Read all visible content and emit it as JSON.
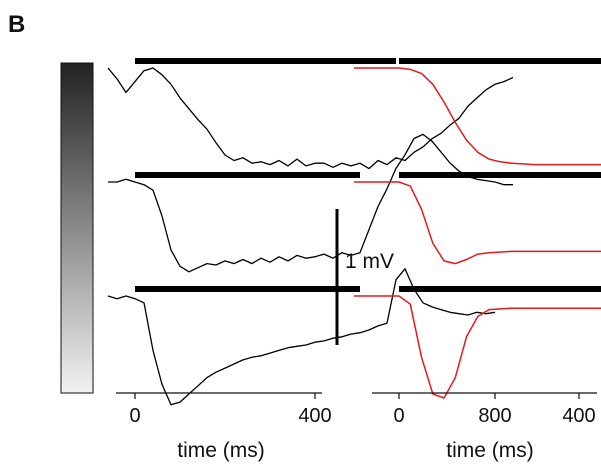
{
  "chart_data": {
    "type": "line",
    "panel_label": "B",
    "grayscale_bar": {
      "top_color": "#222222",
      "bottom_color": "#f2f2f2"
    },
    "scale_bar_label": "1 mV",
    "scale_bar_value_mV": 1,
    "stimulus_color": "#000000",
    "panels": [
      {
        "name": "recorded",
        "trace_color": "#000000",
        "xlabel": "time (ms)",
        "xlim": [
          -80,
          900
        ],
        "xticks": [
          0,
          400,
          800
        ],
        "xtick_labels": [
          "0",
          "400",
          "800"
        ],
        "series": [
          {
            "stimulus": [
              0,
              580
            ],
            "x": [
              -60,
              -40,
              -20,
              0,
              20,
              40,
              60,
              80,
              100,
              120,
              140,
              160,
              180,
              200,
              220,
              240,
              260,
              280,
              300,
              320,
              340,
              360,
              380,
              400,
              420,
              440,
              460,
              480,
              500,
              520,
              540,
              560,
              580,
              600,
              620,
              640,
              660,
              680,
              700,
              720,
              740,
              760,
              780,
              800,
              820,
              840
            ],
            "y": [
              0.0,
              -0.08,
              -0.18,
              -0.1,
              -0.02,
              0.0,
              -0.05,
              -0.12,
              -0.22,
              -0.3,
              -0.38,
              -0.45,
              -0.55,
              -0.64,
              -0.68,
              -0.66,
              -0.7,
              -0.69,
              -0.71,
              -0.68,
              -0.72,
              -0.67,
              -0.72,
              -0.7,
              -0.7,
              -0.73,
              -0.7,
              -0.72,
              -0.7,
              -0.74,
              -0.68,
              -0.71,
              -0.66,
              -0.68,
              -0.62,
              -0.58,
              -0.52,
              -0.48,
              -0.42,
              -0.37,
              -0.28,
              -0.22,
              -0.16,
              -0.12,
              -0.1,
              -0.07
            ]
          },
          {
            "stimulus": [
              0,
              500
            ],
            "x": [
              -60,
              -40,
              -20,
              0,
              20,
              40,
              60,
              80,
              100,
              120,
              140,
              160,
              180,
              200,
              220,
              240,
              260,
              280,
              300,
              320,
              340,
              360,
              380,
              400,
              420,
              440,
              460,
              480,
              500,
              520,
              540,
              560,
              580,
              600,
              620,
              640,
              660,
              680,
              700,
              720,
              740,
              760,
              780,
              800,
              820,
              840
            ],
            "y": [
              0.0,
              0.0,
              0.02,
              0.0,
              -0.02,
              -0.06,
              -0.25,
              -0.5,
              -0.62,
              -0.66,
              -0.63,
              -0.6,
              -0.61,
              -0.58,
              -0.6,
              -0.57,
              -0.6,
              -0.56,
              -0.59,
              -0.55,
              -0.58,
              -0.54,
              -0.56,
              -0.55,
              -0.53,
              -0.56,
              -0.52,
              -0.54,
              -0.52,
              -0.35,
              -0.18,
              -0.05,
              0.1,
              0.2,
              0.32,
              0.35,
              0.3,
              0.22,
              0.14,
              0.08,
              0.04,
              0.02,
              0.01,
              0.0,
              -0.02,
              -0.02
            ]
          },
          {
            "stimulus": [
              0,
              500
            ],
            "x": [
              -60,
              -40,
              -20,
              0,
              20,
              40,
              60,
              80,
              100,
              120,
              140,
              160,
              180,
              200,
              220,
              240,
              260,
              280,
              300,
              320,
              340,
              360,
              380,
              400,
              420,
              440,
              460,
              480,
              500,
              520,
              540,
              560,
              580,
              600,
              620,
              640,
              660,
              680,
              700,
              720,
              740,
              760,
              780,
              800
            ],
            "y": [
              0.0,
              -0.02,
              0.0,
              -0.02,
              -0.05,
              -0.4,
              -0.65,
              -0.8,
              -0.78,
              -0.72,
              -0.66,
              -0.6,
              -0.56,
              -0.53,
              -0.5,
              -0.47,
              -0.45,
              -0.44,
              -0.42,
              -0.4,
              -0.38,
              -0.37,
              -0.36,
              -0.34,
              -0.33,
              -0.31,
              -0.3,
              -0.28,
              -0.27,
              -0.25,
              -0.22,
              -0.2,
              0.12,
              0.2,
              0.05,
              -0.05,
              -0.08,
              -0.1,
              -0.12,
              -0.13,
              -0.14,
              -0.12,
              -0.13,
              -0.12
            ]
          }
        ]
      },
      {
        "name": "model",
        "trace_color": "#e31a1c",
        "xlabel": "time (ms)",
        "xlim": [
          -120,
          900
        ],
        "xticks": [
          0,
          400,
          800
        ],
        "xtick_labels": [
          "0",
          "400",
          "800"
        ],
        "series": [
          {
            "stimulus": [
              0,
              580
            ],
            "x": [
              -100,
              -50,
              0,
              25,
              50,
              75,
              100,
              125,
              150,
              175,
              200,
              225,
              250,
              275,
              300,
              350,
              400,
              450,
              500,
              550,
              575,
              600,
              625,
              650,
              675,
              700,
              725,
              750,
              775,
              800,
              825,
              850,
              875,
              900
            ],
            "y": [
              0.0,
              0.0,
              0.0,
              -0.01,
              -0.04,
              -0.12,
              -0.25,
              -0.4,
              -0.53,
              -0.62,
              -0.67,
              -0.69,
              -0.7,
              -0.705,
              -0.71,
              -0.71,
              -0.71,
              -0.71,
              -0.71,
              -0.71,
              -0.7,
              -0.66,
              -0.55,
              -0.42,
              -0.3,
              -0.2,
              -0.13,
              -0.08,
              -0.04,
              -0.02,
              -0.01,
              0.0,
              0.0,
              0.0
            ]
          },
          {
            "stimulus": [
              0,
              500
            ],
            "x": [
              -100,
              -50,
              0,
              25,
              50,
              75,
              100,
              125,
              150,
              175,
              200,
              250,
              300,
              350,
              400,
              450,
              500,
              525,
              550,
              575,
              600,
              625,
              650,
              675,
              700,
              725,
              750,
              775,
              800,
              850,
              900
            ],
            "y": [
              0.0,
              0.0,
              0.0,
              -0.03,
              -0.2,
              -0.45,
              -0.58,
              -0.6,
              -0.57,
              -0.53,
              -0.52,
              -0.51,
              -0.51,
              -0.51,
              -0.51,
              -0.51,
              -0.51,
              -0.48,
              -0.2,
              0.05,
              0.12,
              0.1,
              0.06,
              0.03,
              0.015,
              0.005,
              0.0,
              0.0,
              0.0,
              0.0,
              0.0
            ]
          },
          {
            "stimulus": [
              0,
              500
            ],
            "x": [
              -100,
              -50,
              0,
              25,
              50,
              75,
              100,
              125,
              150,
              175,
              200,
              250,
              300,
              350,
              400,
              450,
              500,
              525,
              550,
              575,
              600,
              625,
              650,
              675,
              700,
              725,
              750,
              775,
              800,
              850,
              900
            ],
            "y": [
              0.0,
              0.0,
              0.0,
              -0.06,
              -0.45,
              -0.72,
              -0.75,
              -0.6,
              -0.3,
              -0.15,
              -0.1,
              -0.09,
              -0.09,
              -0.09,
              -0.09,
              -0.09,
              -0.09,
              -0.05,
              0.25,
              0.62,
              0.68,
              0.5,
              0.25,
              0.1,
              0.04,
              0.015,
              0.005,
              0.0,
              0.0,
              0.0,
              0.0
            ]
          }
        ]
      }
    ]
  }
}
